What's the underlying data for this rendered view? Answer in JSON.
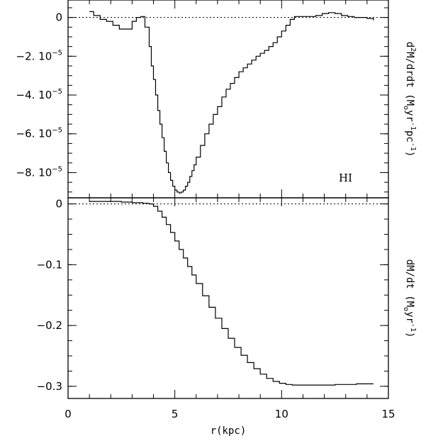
{
  "chart_data": [
    {
      "type": "line",
      "panel": "top",
      "title": "",
      "xlabel": "",
      "ylabel_parts": [
        "d",
        "2",
        "M/drdt (M",
        "o",
        "yr",
        "-1",
        "pc",
        "-1",
        ")"
      ],
      "annotation": "HI",
      "xlim": [
        0,
        15
      ],
      "ylim": [
        -9.3e-05,
        9e-06
      ],
      "step": true,
      "y_tick_values": [
        0,
        -2e-05,
        -4e-05,
        -6e-05,
        -8e-05
      ],
      "y_tick_labels": [
        {
          "mantissa": "0",
          "exp": ""
        },
        {
          "mantissa": "−2. 10",
          "exp": "−5"
        },
        {
          "mantissa": "−4. 10",
          "exp": "−5"
        },
        {
          "mantissa": "−6. 10",
          "exp": "−5"
        },
        {
          "mantissa": "−8. 10",
          "exp": "−5"
        }
      ],
      "reference_line": 0,
      "series": [
        {
          "x": [
            1.0,
            1.2,
            1.5,
            1.8,
            2.1,
            2.4,
            2.7,
            3.0,
            3.2,
            3.4,
            3.6,
            3.8,
            3.9,
            4.0,
            4.1,
            4.2,
            4.3,
            4.4,
            4.5,
            4.6,
            4.7,
            4.8,
            4.9,
            5.0,
            5.1,
            5.2,
            5.3,
            5.4,
            5.5,
            5.6,
            5.7,
            5.8,
            5.9,
            6.0,
            6.2,
            6.4,
            6.6,
            6.8,
            7.0,
            7.2,
            7.4,
            7.6,
            7.8,
            8.0,
            8.2,
            8.4,
            8.6,
            8.8,
            9.0,
            9.2,
            9.4,
            9.6,
            9.8,
            10.0,
            10.2,
            10.4,
            10.6,
            10.8,
            11.0,
            11.3,
            11.6,
            11.9,
            12.2,
            12.5,
            12.8,
            13.1,
            13.4,
            13.7,
            14.0,
            14.3
          ],
          "y": [
            3e-06,
            1e-06,
            -1e-06,
            -2e-06,
            -4e-06,
            -6e-06,
            -6e-06,
            -2e-06,
            0.0,
            5e-07,
            -5e-06,
            -1.5e-05,
            -2.5e-05,
            -3.2e-05,
            -4e-05,
            -4.8e-05,
            -5.5e-05,
            -6.2e-05,
            -6.9e-05,
            -7.5e-05,
            -8e-05,
            -8.4e-05,
            -8.7e-05,
            -8.9e-05,
            -9e-05,
            -9.05e-05,
            -9e-05,
            -8.9e-05,
            -8.7e-05,
            -8.5e-05,
            -8.2e-05,
            -7.9e-05,
            -7.6e-05,
            -7.2e-05,
            -6.6e-05,
            -6e-05,
            -5.5e-05,
            -5e-05,
            -4.6e-05,
            -4.1e-05,
            -3.7e-05,
            -3.4e-05,
            -3.1e-05,
            -2.8e-05,
            -2.6e-05,
            -2.4e-05,
            -2.2e-05,
            -2e-05,
            -1.85e-05,
            -1.7e-05,
            -1.5e-05,
            -1.3e-05,
            -1e-05,
            -7e-06,
            -4e-06,
            -1e-06,
            5e-07,
            5e-07,
            5e-07,
            5e-07,
            1e-06,
            2e-06,
            2.5e-06,
            2e-06,
            1e-06,
            5e-07,
            0.0,
            0.0,
            -5e-07,
            -1.5e-06
          ]
        }
      ]
    },
    {
      "type": "line",
      "panel": "bottom",
      "title": "",
      "xlabel": "r(kpc)",
      "ylabel_parts": [
        "dM/dt (M",
        "o",
        "yr",
        "-1",
        ")"
      ],
      "xlim": [
        0,
        15
      ],
      "ylim": [
        -0.32,
        0.01
      ],
      "step": true,
      "x_ticks": [
        0,
        5,
        10,
        15
      ],
      "y_tick_values": [
        0,
        -0.1,
        -0.2,
        -0.3
      ],
      "y_tick_labels": [
        "0",
        "−0.1",
        "−0.2",
        "−0.3"
      ],
      "reference_line": 0,
      "series": [
        {
          "x": [
            1.0,
            1.5,
            2.0,
            2.5,
            3.0,
            3.5,
            3.8,
            4.0,
            4.2,
            4.4,
            4.6,
            4.8,
            5.0,
            5.2,
            5.4,
            5.6,
            5.8,
            6.0,
            6.3,
            6.6,
            6.9,
            7.2,
            7.5,
            7.8,
            8.1,
            8.4,
            8.7,
            9.0,
            9.3,
            9.6,
            9.9,
            10.2,
            10.5,
            11.0,
            11.5,
            12.0,
            12.5,
            13.0,
            13.5,
            14.0,
            14.3
          ],
          "y": [
            0.004,
            0.004,
            0.004,
            0.003,
            0.002,
            0.001,
            0.0,
            -0.004,
            -0.012,
            -0.022,
            -0.034,
            -0.047,
            -0.061,
            -0.075,
            -0.089,
            -0.103,
            -0.117,
            -0.131,
            -0.151,
            -0.17,
            -0.188,
            -0.205,
            -0.221,
            -0.236,
            -0.249,
            -0.261,
            -0.271,
            -0.28,
            -0.287,
            -0.292,
            -0.295,
            -0.297,
            -0.298,
            -0.298,
            -0.298,
            -0.298,
            -0.297,
            -0.297,
            -0.296,
            -0.296,
            -0.296
          ]
        }
      ]
    }
  ]
}
